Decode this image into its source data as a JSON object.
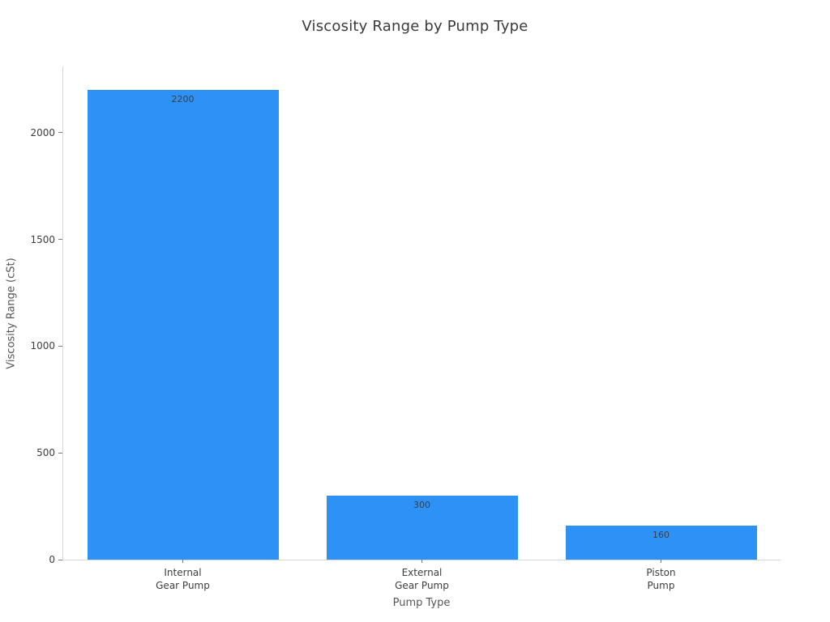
{
  "chart_data": {
    "type": "bar",
    "title": "Viscosity Range by Pump Type",
    "xlabel": "Pump Type",
    "ylabel": "Viscosity Range (cSt)",
    "categories": [
      [
        "Internal",
        "Gear Pump"
      ],
      [
        "External",
        "Gear Pump"
      ],
      [
        "Piston",
        "Pump"
      ]
    ],
    "values": [
      2200,
      300,
      160
    ],
    "bar_labels": [
      "2200",
      "300",
      "160"
    ],
    "yticks": [
      0,
      500,
      1000,
      1500,
      2000
    ],
    "ylim": [
      0,
      2310
    ],
    "bar_width_fraction": 0.8,
    "grid": false,
    "legend": "none",
    "colors": {
      "bar": "#2e91f5",
      "axis_line": "#d7d7d7",
      "tick_mark": "#7a7a7a",
      "tick_text": "#3d3d3d",
      "axis_title_text": "#555555",
      "title_text": "#3a3a3a",
      "background": "#ffffff"
    }
  }
}
